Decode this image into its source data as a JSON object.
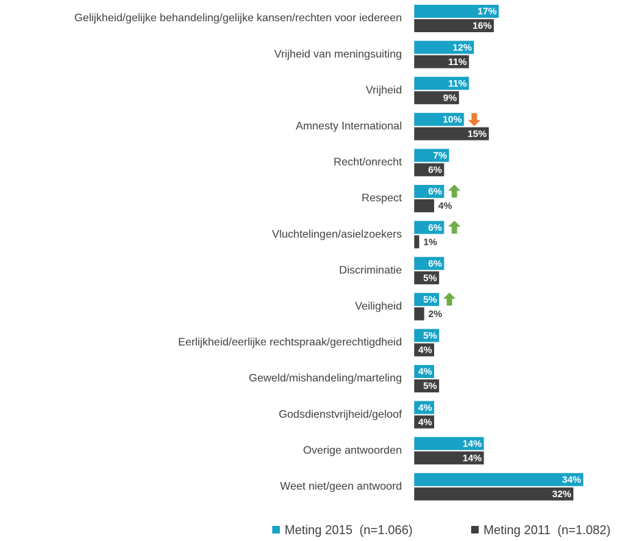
{
  "chart_data": {
    "type": "bar",
    "orientation": "horizontal",
    "categories": [
      "Gelijkheid/gelijke behandeling/gelijke kansen/rechten voor iedereen",
      "Vrijheid van meningsuiting",
      "Vrijheid",
      "Amnesty International",
      "Recht/onrecht",
      "Respect",
      "Vluchtelingen/asielzoekers",
      "Discriminatie",
      "Veiligheid",
      "Eerlijkheid/eerlijke rechtspraak/gerechtigdheid",
      "Geweld/mishandeling/marteling",
      "Godsdienstvrijheid/geloof",
      "Overige antwoorden",
      "Weet niet/geen antwoord"
    ],
    "series": [
      {
        "name": "Meting 2015  (n=1.066)",
        "color": "#17a2c6",
        "values": [
          17,
          12,
          11,
          10,
          7,
          6,
          6,
          6,
          5,
          5,
          4,
          4,
          14,
          34
        ],
        "value_labels": [
          "17%",
          "12%",
          "11%",
          "10%",
          "7%",
          "6%",
          "6%",
          "6%",
          "5%",
          "5%",
          "4%",
          "4%",
          "14%",
          "34%"
        ]
      },
      {
        "name": "Meting 2011  (n=1.082)",
        "color": "#404040",
        "values": [
          16,
          11,
          9,
          15,
          6,
          4,
          1,
          5,
          2,
          4,
          5,
          4,
          14,
          32
        ],
        "value_labels": [
          "16%",
          "11%",
          "9%",
          "15%",
          "6%",
          "4%",
          "1%",
          "5%",
          "2%",
          "4%",
          "5%",
          "4%",
          "14%",
          "32%"
        ]
      }
    ],
    "significance": [
      null,
      null,
      null,
      "down",
      null,
      "up",
      "up",
      null,
      "up",
      null,
      null,
      null,
      null,
      null
    ]
  }
}
